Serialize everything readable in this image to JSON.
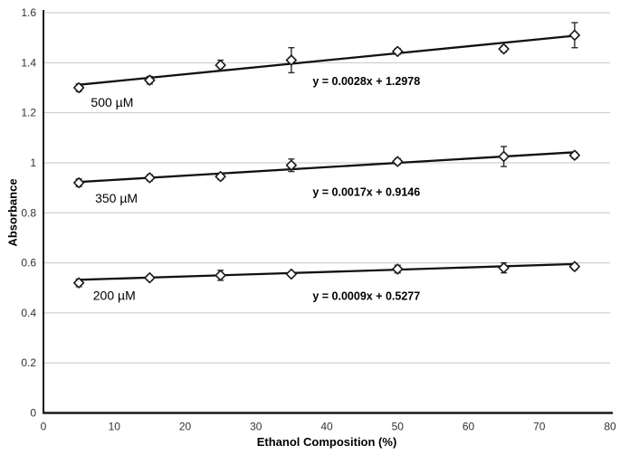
{
  "chart_data": {
    "type": "scatter",
    "title": "",
    "xlabel": "Ethanol Composition (%)",
    "ylabel": "Absorbance",
    "xlim": [
      0,
      80
    ],
    "ylim": [
      0,
      1.6
    ],
    "xticks": [
      0,
      10,
      20,
      30,
      40,
      50,
      60,
      70,
      80
    ],
    "ytick_values": [
      0,
      0.2,
      0.4,
      0.6,
      0.8,
      1,
      1.2,
      1.4,
      1.6
    ],
    "ytick_labels": [
      "0",
      "0.2",
      "0.4",
      "0.6",
      "0.8",
      "1",
      "1.2",
      "1.4",
      "1.6"
    ],
    "grid": "horizontal",
    "legend_position": "inline-labels",
    "x": [
      5,
      15,
      25,
      35,
      50,
      65,
      75
    ],
    "series": [
      {
        "name": "500 µM",
        "values": [
          1.3,
          1.33,
          1.39,
          1.41,
          1.445,
          1.455,
          1.51
        ],
        "errors": [
          0.015,
          0.015,
          0.02,
          0.05,
          0.012,
          0.012,
          0.05
        ],
        "trend_slope": 0.0028,
        "trend_intercept": 1.2978,
        "equation": "y = 0.0028x + 1.2978",
        "label_pos": {
          "x": 6.7,
          "y": 1.242
        },
        "equation_pos": {
          "x": 38,
          "y": 1.325
        }
      },
      {
        "name": "350 µM",
        "values": [
          0.92,
          0.94,
          0.945,
          0.99,
          1.005,
          1.025,
          1.03
        ],
        "errors": [
          0.015,
          0.012,
          0.012,
          0.025,
          0.012,
          0.04,
          0.012
        ],
        "trend_slope": 0.0017,
        "trend_intercept": 0.9146,
        "equation": "y = 0.0017x + 0.9146",
        "label_pos": {
          "x": 7.3,
          "y": 0.858
        },
        "equation_pos": {
          "x": 38,
          "y": 0.883
        }
      },
      {
        "name": "200 µM",
        "values": [
          0.52,
          0.54,
          0.55,
          0.555,
          0.575,
          0.58,
          0.585
        ],
        "errors": [
          0.015,
          0.01,
          0.02,
          0.008,
          0.015,
          0.02,
          0.012
        ],
        "trend_slope": 0.0009,
        "trend_intercept": 0.5277,
        "equation": "y = 0.0009x + 0.5277",
        "label_pos": {
          "x": 7.0,
          "y": 0.47
        },
        "equation_pos": {
          "x": 38,
          "y": 0.467
        }
      }
    ],
    "colors": {
      "marker_stroke": "#1a1a1a",
      "marker_fill": "#ffffff",
      "trendline": "#111111",
      "errorbar": "#2b2b2b",
      "gridline": "#c6c6c6",
      "axis": "#1a1a1a",
      "tick_text": "#333333",
      "label_text": "#000000"
    }
  }
}
